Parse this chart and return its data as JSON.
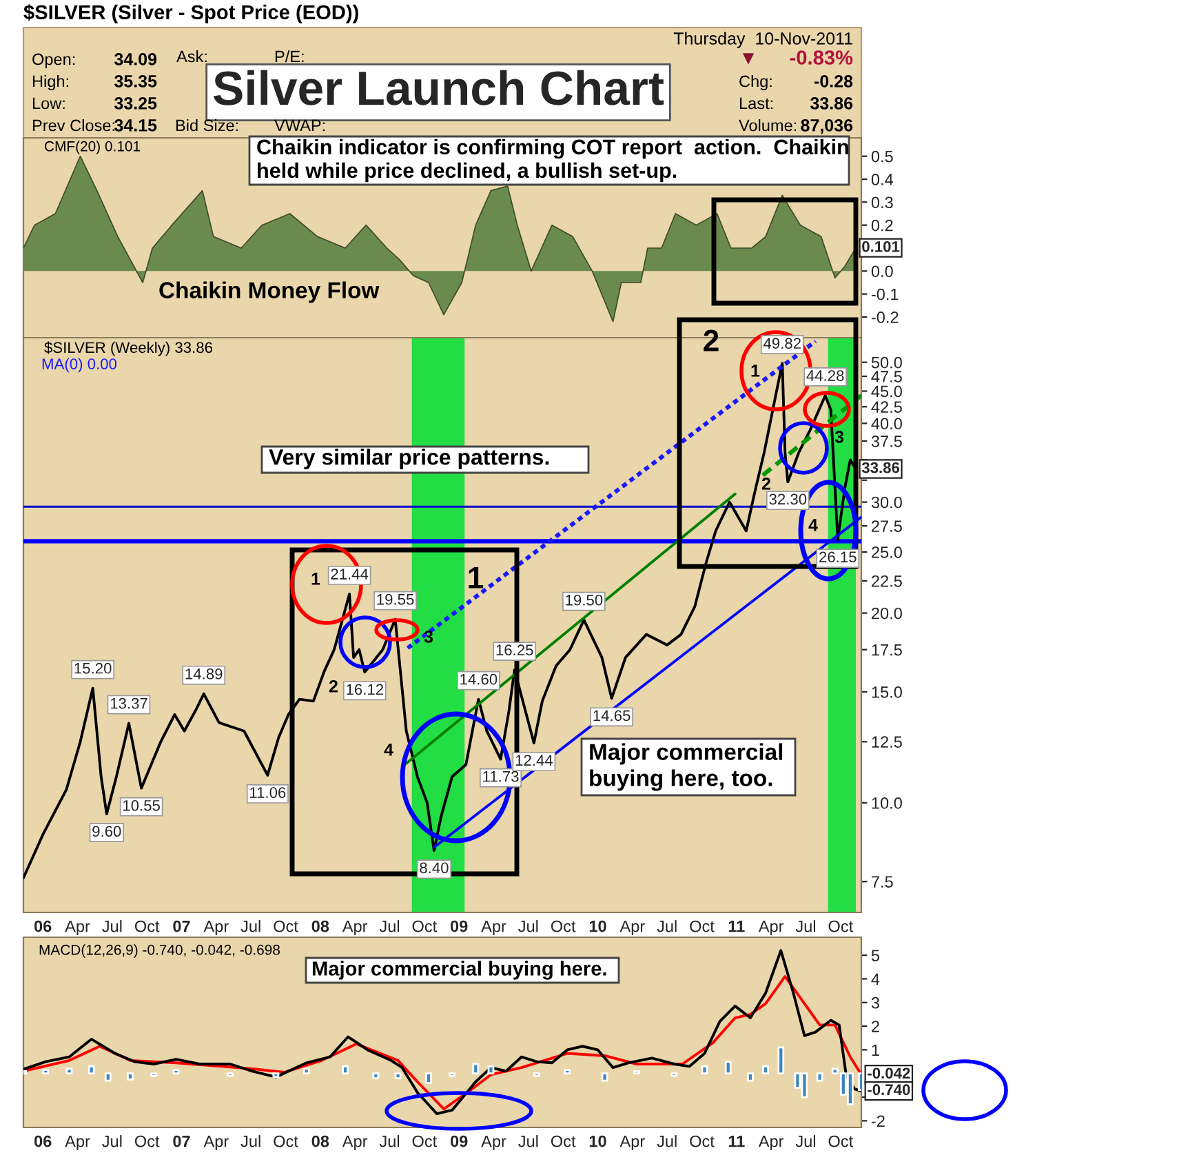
{
  "chart_data": [
    {
      "type": "area",
      "title": "Silver Launch Chart",
      "tick_labels": "y",
      "xlim": [
        2005.86,
        2011.9
      ],
      "ylim": [
        -0.29,
        0.58
      ],
      "xticks": [
        {
          "value": 2006,
          "label": null
        },
        {
          "value": 2006.25,
          "label": null
        },
        {
          "value": 2006.5,
          "label": null
        },
        {
          "value": 2006.75,
          "label": null
        },
        {
          "value": 2007,
          "label": null
        },
        {
          "value": 2007.25,
          "label": null
        },
        {
          "value": 2007.5,
          "label": null
        },
        {
          "value": 2007.75,
          "label": null
        },
        {
          "value": 2008,
          "label": null
        },
        {
          "value": 2008.25,
          "label": null
        },
        {
          "value": 2008.5,
          "label": null
        },
        {
          "value": 2008.75,
          "label": null
        },
        {
          "value": 2009,
          "label": null
        },
        {
          "value": 2009.25,
          "label": null
        },
        {
          "value": 2009.5,
          "label": null
        },
        {
          "value": 2009.75,
          "label": null
        },
        {
          "value": 2010,
          "label": null
        },
        {
          "value": 2010.25,
          "label": null
        },
        {
          "value": 2010.5,
          "label": null
        },
        {
          "value": 2010.75,
          "label": null
        },
        {
          "value": 2011,
          "label": null
        },
        {
          "value": 2011.25,
          "label": null
        },
        {
          "value": 2011.5,
          "label": null
        },
        {
          "value": 2011.75,
          "label": null
        }
      ],
      "yticks": [
        -0.2,
        -0.1,
        {
          "value": 0,
          "label": "0.0"
        },
        {
          "value": 0.1,
          "label": null
        },
        0.2,
        0.3,
        0.4,
        0.5
      ],
      "series": [
        {
          "color": "#6b8a4e",
          "x": [
            2005.86,
            2005.94,
            2006.09,
            2006.27,
            2006.39,
            2006.54,
            2006.72,
            2006.79,
            2006.93,
            2007.15,
            2007.23,
            2007.43,
            2007.58,
            2007.78,
            2007.98,
            2008.18,
            2008.33,
            2008.48,
            2008.57,
            2008.67,
            2008.78,
            2008.89,
            2009.02,
            2009.12,
            2009.23,
            2009.35,
            2009.42,
            2009.52,
            2009.67,
            2009.82,
            2009.96,
            2010.11,
            2010.17,
            2010.31,
            2010.36,
            2010.46,
            2010.56,
            2010.71,
            2010.86,
            2010.96,
            2011.11,
            2011.21,
            2011.33,
            2011.46,
            2011.61,
            2011.71,
            2011.78,
            2011.86
          ],
          "values": [
            0.1,
            0.2,
            0.25,
            0.5,
            0.35,
            0.15,
            -0.05,
            0.1,
            0.2,
            0.35,
            0.15,
            0.1,
            0.2,
            0.25,
            0.15,
            0.1,
            0.2,
            0.1,
            0.05,
            -0.02,
            -0.05,
            -0.19,
            -0.05,
            0.2,
            0.35,
            0.37,
            0.2,
            0.0,
            0.2,
            0.15,
            0.0,
            -0.22,
            -0.05,
            -0.05,
            0.1,
            0.1,
            0.25,
            0.2,
            0.25,
            0.1,
            0.1,
            0.15,
            0.33,
            0.2,
            0.15,
            -0.03,
            0.02,
            0.101
          ]
        }
      ],
      "annotations": [
        "$SILVER (Silver - Spot Price (EOD))",
        "Thursday  10-Nov-2011",
        "Open:",
        "34.09",
        "High:",
        "35.35",
        "Low:",
        "33.25",
        "Prev Close:",
        "34.15",
        "Ask:",
        "P/E:",
        "Bid Size:",
        "VWAP:",
        "▼",
        "-0.83%",
        "Chg:",
        "-0.28",
        "Last:",
        "33.86",
        "Volume:",
        "87,036",
        "CMF(20) 0.101",
        "Chaikin indicator is confirming COT report  action.  Chaikin",
        "held while price declined, a bullish set-up.",
        "Chaikin Money Flow",
        {
          "text": "0.101",
          "x": 2011.86,
          "y": 0.101
        }
      ]
    },
    {
      "type": "line",
      "log": "y",
      "xlim": [
        2005.86,
        2011.9
      ],
      "ylim": [
        6.7,
        54.7
      ],
      "xticks": [
        {
          "value": 2006,
          "label": "06"
        },
        {
          "value": 2006.25,
          "label": "Apr"
        },
        {
          "value": 2006.5,
          "label": "Jul"
        },
        {
          "value": 2006.75,
          "label": "Oct"
        },
        {
          "value": 2007,
          "label": "07"
        },
        {
          "value": 2007.25,
          "label": "Apr"
        },
        {
          "value": 2007.5,
          "label": "Jul"
        },
        {
          "value": 2007.75,
          "label": "Oct"
        },
        {
          "value": 2008,
          "label": "08"
        },
        {
          "value": 2008.25,
          "label": "Apr"
        },
        {
          "value": 2008.5,
          "label": "Jul"
        },
        {
          "value": 2008.75,
          "label": "Oct"
        },
        {
          "value": 2009,
          "label": "09"
        },
        {
          "value": 2009.25,
          "label": "Apr"
        },
        {
          "value": 2009.5,
          "label": "Jul"
        },
        {
          "value": 2009.75,
          "label": "Oct"
        },
        {
          "value": 2010,
          "label": "10"
        },
        {
          "value": 2010.25,
          "label": "Apr"
        },
        {
          "value": 2010.5,
          "label": "Jul"
        },
        {
          "value": 2010.75,
          "label": "Oct"
        },
        {
          "value": 2011,
          "label": "11"
        },
        {
          "value": 2011.25,
          "label": "Apr"
        },
        {
          "value": 2011.5,
          "label": "Jul"
        },
        {
          "value": 2011.75,
          "label": "Oct"
        }
      ],
      "yticks": [
        7.5,
        {
          "value": 10,
          "label": "10.0"
        },
        12.5,
        {
          "value": 15,
          "label": "15.0"
        },
        17.5,
        {
          "value": 20,
          "label": "20.0"
        },
        22.5,
        {
          "value": 25,
          "label": "25.0"
        },
        27.5,
        {
          "value": 30,
          "label": "30.0"
        },
        {
          "value": 32.5,
          "label": null
        },
        {
          "value": 35,
          "label": null
        },
        37.5,
        {
          "value": 40,
          "label": "40.0"
        },
        42.5,
        {
          "value": 45,
          "label": "45.0"
        },
        47.5,
        {
          "value": 50,
          "label": "50.0"
        }
      ],
      "bands": [
        {
          "axis": "x",
          "from": 2008.66,
          "to": 2009.04,
          "color": "#22dd44"
        },
        {
          "axis": "x",
          "from": 2011.66,
          "to": 2011.86,
          "color": "#22dd44"
        }
      ],
      "ref_lines": [
        {
          "axis": "y",
          "value": 29.5,
          "color": "#0000cc",
          "line_style": "solid"
        },
        {
          "axis": "y",
          "value": 26.0,
          "color": "#0000ff",
          "line_style": "solid"
        }
      ],
      "series": [
        {
          "color": "#000000",
          "x": [
            2005.86,
            2006.0,
            2006.17,
            2006.27,
            2006.36,
            2006.42,
            2006.46,
            2006.53,
            2006.62,
            2006.71,
            2006.85,
            2006.95,
            2007.02,
            2007.1,
            2007.16,
            2007.27,
            2007.45,
            2007.62,
            2007.7,
            2007.77,
            2007.85,
            2007.95,
            2008.03,
            2008.1,
            2008.21,
            2008.24,
            2008.28,
            2008.32,
            2008.45,
            2008.54,
            2008.62,
            2008.7,
            2008.77,
            2008.82,
            2008.87,
            2008.95,
            2009.05,
            2009.14,
            2009.2,
            2009.3,
            2009.36,
            2009.4,
            2009.54,
            2009.6,
            2009.7,
            2009.8,
            2009.9,
            2010.03,
            2010.1,
            2010.2,
            2010.35,
            2010.5,
            2010.6,
            2010.7,
            2010.78,
            2010.85,
            2010.95,
            2011.07,
            2011.13,
            2011.2,
            2011.28,
            2011.33,
            2011.35,
            2011.37,
            2011.45,
            2011.53,
            2011.64,
            2011.68,
            2011.73,
            2011.78,
            2011.82,
            2011.86
          ],
          "values": [
            7.6,
            8.9,
            10.5,
            12.5,
            15.2,
            11.0,
            9.6,
            11.0,
            13.37,
            10.55,
            12.5,
            13.8,
            13.0,
            14.0,
            14.89,
            13.4,
            13.0,
            11.06,
            12.7,
            13.8,
            14.6,
            14.5,
            16.2,
            17.5,
            21.44,
            17.0,
            17.5,
            16.12,
            17.5,
            19.55,
            13.0,
            11.0,
            10.0,
            8.4,
            9.5,
            11.0,
            11.5,
            14.6,
            13.0,
            11.73,
            14.0,
            16.25,
            12.44,
            14.5,
            16.5,
            17.5,
            19.5,
            17.0,
            14.65,
            17.0,
            18.5,
            17.8,
            18.5,
            20.5,
            24.0,
            27.0,
            30.0,
            27.0,
            31.0,
            36.0,
            44.0,
            49.82,
            36.0,
            32.3,
            36.0,
            39.0,
            44.28,
            42.0,
            26.15,
            31.5,
            35.0,
            33.86
          ]
        },
        {
          "color": "#1a1aff",
          "line_style": "dotted",
          "x": [
            2008.63,
            2011.57
          ],
          "values": [
            17.6,
            54.0
          ]
        },
        {
          "color": "#0000ff",
          "line_style": "solid",
          "x": [
            2008.82,
            2011.9
          ],
          "values": [
            8.5,
            28.4
          ]
        },
        {
          "color": "#008000",
          "line_style": "solid",
          "x": [
            2008.62,
            2010.99
          ],
          "values": [
            11.55,
            30.9
          ]
        },
        {
          "color": "#009900",
          "line_style": "dashed",
          "x": [
            2011.19,
            2011.9
          ],
          "values": [
            33.1,
            44.3
          ]
        }
      ],
      "annotations": [
        "$SILVER (Weekly) 33.86",
        "MA(0) 0.00",
        "Very similar price patterns.",
        "Major commercial",
        "buying here, too.",
        "1",
        "2",
        "1",
        "2",
        "3",
        "4",
        "1",
        "2",
        "3",
        "4",
        {
          "text": "15.20",
          "x": 2006.36,
          "y": 15.2
        },
        {
          "text": "9.60",
          "x": 2006.46,
          "y": 9.6
        },
        {
          "text": "13.37",
          "x": 2006.62,
          "y": 13.37
        },
        {
          "text": "10.55",
          "x": 2006.71,
          "y": 10.55
        },
        {
          "text": "14.89",
          "x": 2007.16,
          "y": 14.89
        },
        {
          "text": "11.06",
          "x": 2007.62,
          "y": 11.06
        },
        {
          "text": "21.44",
          "x": 2008.21,
          "y": 21.44
        },
        {
          "text": "16.12",
          "x": 2008.32,
          "y": 16.12
        },
        {
          "text": "19.55",
          "x": 2008.54,
          "y": 19.55
        },
        {
          "text": "8.40",
          "x": 2008.82,
          "y": 8.4
        },
        {
          "text": "14.60",
          "x": 2009.14,
          "y": 14.6
        },
        {
          "text": "11.73",
          "x": 2009.3,
          "y": 11.73
        },
        {
          "text": "16.25",
          "x": 2009.4,
          "y": 16.25
        },
        {
          "text": "12.44",
          "x": 2009.54,
          "y": 12.44
        },
        {
          "text": "19.50",
          "x": 2009.9,
          "y": 19.5
        },
        {
          "text": "14.65",
          "x": 2010.1,
          "y": 14.65
        },
        {
          "text": "49.82",
          "x": 2011.33,
          "y": 49.82
        },
        {
          "text": "32.30",
          "x": 2011.37,
          "y": 32.3
        },
        {
          "text": "44.28",
          "x": 2011.64,
          "y": 44.28
        },
        {
          "text": "26.15",
          "x": 2011.73,
          "y": 26.15
        },
        {
          "text": "33.86",
          "x": 2011.86,
          "y": 33.86
        }
      ]
    },
    {
      "type": "line",
      "xlim": [
        2005.86,
        2011.9
      ],
      "ylim": [
        -2.28,
        5.76
      ],
      "xticks": [
        {
          "value": 2006,
          "label": "06"
        },
        {
          "value": 2006.25,
          "label": "Apr"
        },
        {
          "value": 2006.5,
          "label": "Jul"
        },
        {
          "value": 2006.75,
          "label": "Oct"
        },
        {
          "value": 2007,
          "label": "07"
        },
        {
          "value": 2007.25,
          "label": "Apr"
        },
        {
          "value": 2007.5,
          "label": "Jul"
        },
        {
          "value": 2007.75,
          "label": "Oct"
        },
        {
          "value": 2008,
          "label": "08"
        },
        {
          "value": 2008.25,
          "label": "Apr"
        },
        {
          "value": 2008.5,
          "label": "Jul"
        },
        {
          "value": 2008.75,
          "label": "Oct"
        },
        {
          "value": 2009,
          "label": "09"
        },
        {
          "value": 2009.25,
          "label": "Apr"
        },
        {
          "value": 2009.5,
          "label": "Jul"
        },
        {
          "value": 2009.75,
          "label": "Oct"
        },
        {
          "value": 2010,
          "label": "10"
        },
        {
          "value": 2010.25,
          "label": "Apr"
        },
        {
          "value": 2010.5,
          "label": "Jul"
        },
        {
          "value": 2010.75,
          "label": "Oct"
        },
        {
          "value": 2011,
          "label": "11"
        },
        {
          "value": 2011.25,
          "label": "Apr"
        },
        {
          "value": 2011.5,
          "label": "Jul"
        },
        {
          "value": 2011.75,
          "label": "Oct"
        }
      ],
      "yticks": [
        -2,
        {
          "value": -1,
          "label": null
        },
        1,
        2,
        3,
        4,
        5
      ],
      "series": [
        {
          "type": "bar",
          "color": "#3d86c0",
          "x": [
            2005.86,
            2006.02,
            2006.19,
            2006.35,
            2006.47,
            2006.63,
            2006.8,
            2006.96,
            2007.35,
            2007.68,
            2007.9,
            2008.18,
            2008.4,
            2008.56,
            2008.78,
            2008.95,
            2009.12,
            2009.23,
            2009.56,
            2009.78,
            2010.05,
            2010.28,
            2010.55,
            2010.77,
            2010.94,
            2011.1,
            2011.21,
            2011.32,
            2011.44,
            2011.49,
            2011.6,
            2011.71,
            2011.77,
            2011.82,
            2011.9
          ],
          "values": [
            0.1,
            0.15,
            0.2,
            0.3,
            -0.3,
            -0.25,
            -0.1,
            0.15,
            -0.1,
            -0.15,
            0.2,
            0.3,
            -0.2,
            -0.2,
            -0.4,
            -0.1,
            0.4,
            0.3,
            -0.1,
            0.15,
            -0.3,
            0.1,
            -0.1,
            0.3,
            0.5,
            -0.3,
            0.3,
            1.1,
            -0.6,
            -1.0,
            -0.3,
            0.2,
            -0.9,
            -1.3,
            -0.698
          ]
        },
        {
          "color": "#ff0000",
          "x": [
            2005.86,
            2006.19,
            2006.41,
            2006.63,
            2006.96,
            2007.51,
            2007.74,
            2008.01,
            2008.26,
            2008.56,
            2008.7,
            2008.89,
            2009.06,
            2009.23,
            2009.45,
            2009.78,
            2010.05,
            2010.28,
            2010.61,
            2010.83,
            2010.99,
            2011.1,
            2011.21,
            2011.35,
            2011.49,
            2011.6,
            2011.71,
            2011.82,
            2011.9
          ],
          "values": [
            0.1,
            0.55,
            1.15,
            0.55,
            0.45,
            0.2,
            0.05,
            0.55,
            1.25,
            0.55,
            -0.35,
            -1.5,
            -0.8,
            -0.05,
            0.25,
            0.85,
            0.75,
            0.4,
            0.4,
            1.3,
            2.35,
            2.5,
            2.95,
            4.1,
            2.95,
            2.05,
            2.05,
            0.7,
            -0.042
          ]
        },
        {
          "color": "#000000",
          "x": [
            2005.86,
            2006.02,
            2006.19,
            2006.35,
            2006.52,
            2006.66,
            2006.8,
            2006.96,
            2007.13,
            2007.35,
            2007.51,
            2007.68,
            2007.9,
            2008.07,
            2008.2,
            2008.34,
            2008.51,
            2008.59,
            2008.7,
            2008.84,
            2008.95,
            2009.12,
            2009.23,
            2009.34,
            2009.45,
            2009.56,
            2009.67,
            2009.78,
            2009.89,
            2010.0,
            2010.11,
            2010.22,
            2010.39,
            2010.55,
            2010.66,
            2010.77,
            2010.88,
            2010.99,
            2011.1,
            2011.21,
            2011.32,
            2011.41,
            2011.49,
            2011.57,
            2011.68,
            2011.74,
            2011.79,
            2011.85,
            2011.9
          ],
          "values": [
            0.18,
            0.5,
            0.7,
            1.45,
            0.85,
            0.5,
            0.4,
            0.6,
            0.4,
            0.4,
            0.1,
            -0.15,
            0.45,
            0.7,
            1.55,
            1.0,
            0.55,
            0.25,
            -0.8,
            -1.7,
            -1.55,
            -0.35,
            0.25,
            0.1,
            0.7,
            0.5,
            0.45,
            1.0,
            1.15,
            1.0,
            0.25,
            0.45,
            0.65,
            0.4,
            0.3,
            0.85,
            2.2,
            2.85,
            2.35,
            3.4,
            5.2,
            3.4,
            1.6,
            1.75,
            2.25,
            2.05,
            -0.05,
            -0.65,
            -0.74
          ]
        }
      ],
      "annotations": [
        "MACD(12,26,9) -0.740, -0.042, -0.698",
        "Major commercial buying here.",
        {
          "text": "-0.042",
          "x": 2011.9,
          "y": -0.042
        },
        {
          "text": "-0.740",
          "x": 2011.9,
          "y": -0.74
        }
      ]
    }
  ]
}
